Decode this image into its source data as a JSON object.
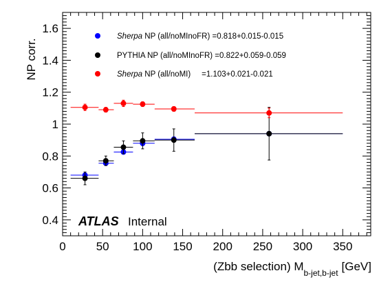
{
  "chart_data": {
    "type": "scatter",
    "xlabel_main": "(Zbb selection) M",
    "xlabel_sub": "b-jet,b-jet",
    "xlabel_unit": "[GeV]",
    "ylabel": "NP corr.",
    "xlim": [
      0,
      385
    ],
    "ylim": [
      0.3,
      1.7
    ],
    "xticks": [
      "0",
      "50",
      "100",
      "150",
      "200",
      "250",
      "300",
      "350"
    ],
    "yticks": [
      "0.4",
      "0.6",
      "0.8",
      "1",
      "1.2",
      "1.4",
      "1.6"
    ],
    "atlas_label": "ATLAS",
    "atlas_sublabel": "Internal",
    "legend_position": "top-left",
    "series": [
      {
        "name": "Sherpa NP (all/noMInoFR) =0.818+0.015-0.015",
        "name_italic": "Sherpa",
        "name_rest": " NP (all/noMInoFR) =0.818+0.015-0.015",
        "color": "#0000ff",
        "points": [
          {
            "x": 28,
            "xlo": 10,
            "xhi": 45,
            "y": 0.68,
            "err": 0.01
          },
          {
            "x": 54,
            "xlo": 45,
            "xhi": 64,
            "y": 0.755,
            "err": 0.01
          },
          {
            "x": 76,
            "xlo": 64,
            "xhi": 88,
            "y": 0.825,
            "err": 0.01
          },
          {
            "x": 100,
            "xlo": 88,
            "xhi": 115,
            "y": 0.88,
            "err": 0.015
          },
          {
            "x": 139,
            "xlo": 115,
            "xhi": 165,
            "y": 0.905,
            "err": 0.015
          },
          {
            "x": 258,
            "xlo": 165,
            "xhi": 350,
            "y": 0.94,
            "err": 0.01
          }
        ]
      },
      {
        "name": "PYTHIA NP (all/noMInoFR) =0.822+0.059-0.059",
        "name_italic": "",
        "name_rest": "PYTHIA NP (all/noMInoFR) =0.822+0.059-0.059",
        "color": "#000000",
        "points": [
          {
            "x": 28,
            "xlo": 10,
            "xhi": 45,
            "y": 0.66,
            "err": 0.04
          },
          {
            "x": 54,
            "xlo": 45,
            "xhi": 64,
            "y": 0.77,
            "err": 0.03
          },
          {
            "x": 76,
            "xlo": 64,
            "xhi": 88,
            "y": 0.855,
            "err": 0.04
          },
          {
            "x": 100,
            "xlo": 88,
            "xhi": 115,
            "y": 0.895,
            "err": 0.05
          },
          {
            "x": 139,
            "xlo": 115,
            "xhi": 165,
            "y": 0.9,
            "err": 0.07
          },
          {
            "x": 258,
            "xlo": 165,
            "xhi": 350,
            "y": 0.94,
            "err": 0.165
          }
        ]
      },
      {
        "name": "Sherpa NP (all/noMI)     =1.103+0.021-0.021",
        "name_italic": "Sherpa",
        "name_rest": " NP (all/noMI)     =1.103+0.021-0.021",
        "color": "#ff0000",
        "points": [
          {
            "x": 28,
            "xlo": 10,
            "xhi": 45,
            "y": 1.105,
            "err": 0.02
          },
          {
            "x": 54,
            "xlo": 45,
            "xhi": 64,
            "y": 1.09,
            "err": 0.015
          },
          {
            "x": 76,
            "xlo": 64,
            "xhi": 88,
            "y": 1.13,
            "err": 0.02
          },
          {
            "x": 100,
            "xlo": 88,
            "xhi": 115,
            "y": 1.125,
            "err": 0.015
          },
          {
            "x": 139,
            "xlo": 115,
            "xhi": 165,
            "y": 1.095,
            "err": 0.015
          },
          {
            "x": 258,
            "xlo": 165,
            "xhi": 350,
            "y": 1.07,
            "err": 0.03
          }
        ]
      }
    ]
  }
}
